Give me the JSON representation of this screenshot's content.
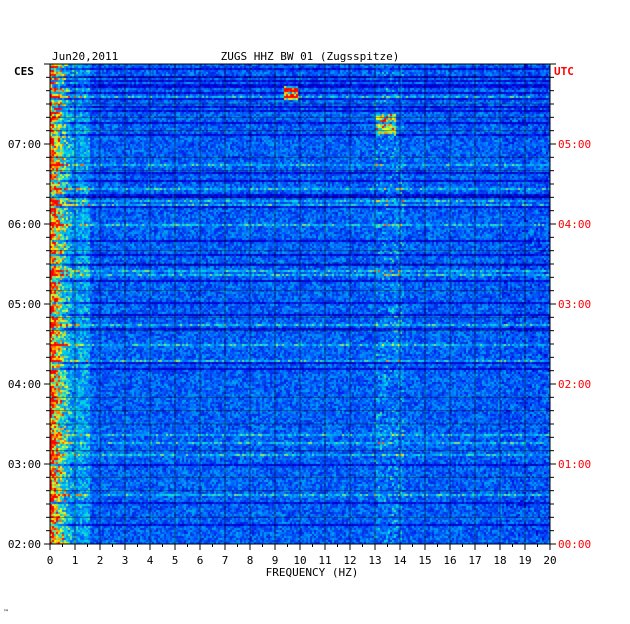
{
  "chart_data": {
    "type": "heatmap",
    "date": "Jun20,2011",
    "title": "ZUGS HHZ BW 01 (Zugsspitze)",
    "left_axis_label": "CES",
    "right_axis_label": "UTC",
    "xlabel": "FREQUENCY (HZ)",
    "xlim": [
      0,
      20
    ],
    "x_ticks": [
      "0",
      "1",
      "2",
      "3",
      "4",
      "5",
      "6",
      "7",
      "8",
      "9",
      "10",
      "11",
      "12",
      "13",
      "14",
      "15",
      "16",
      "17",
      "18",
      "19",
      "20"
    ],
    "left_time_ticks": [
      "02:00",
      "03:00",
      "04:00",
      "05:00",
      "06:00",
      "07:00"
    ],
    "right_time_ticks": [
      "00:00",
      "01:00",
      "02:00",
      "03:00",
      "04:00",
      "05:00"
    ],
    "time_range_hours_local": [
      2.0,
      8.0
    ],
    "colors": {
      "low": "#0000b4",
      "mid": "#0080ff",
      "high": "#00e0e0",
      "peak": "#ffff00",
      "max": "#ff0000",
      "right_axis_text": "#ff0000",
      "frame": "#000000"
    },
    "noted_features": [
      {
        "freq_hz": [
          0.1,
          0.8
        ],
        "note": "strong low-frequency energy, yellow/red"
      },
      {
        "freq_hz": [
          9.4,
          9.8
        ],
        "time_local": "07:40",
        "note": "yellow burst"
      },
      {
        "freq_hz": [
          13.0,
          14.0
        ],
        "note": "recurring cyan/yellow bands"
      }
    ]
  },
  "corner_mark": "™"
}
